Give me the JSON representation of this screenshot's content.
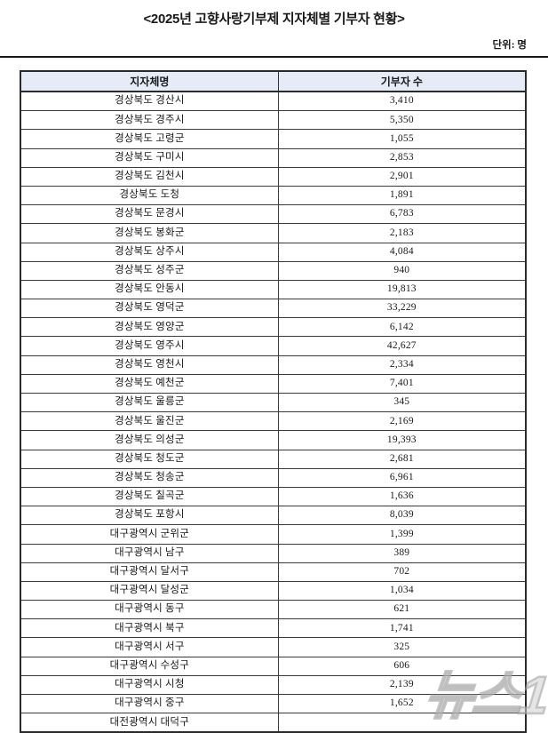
{
  "title": "<2025년 고향사랑기부제 지자체별 기부자 현황>",
  "unit_label": "단위: 명",
  "watermark": "뉴스1",
  "colors": {
    "header_bg": "#e6ebf8",
    "border": "#2a2a2a"
  },
  "table": {
    "columns": [
      "지자체명",
      "기부자 수"
    ],
    "rows": [
      {
        "name": "경상북도 경산시",
        "donors": "3,410"
      },
      {
        "name": "경상북도 경주시",
        "donors": "5,350"
      },
      {
        "name": "경상북도 고령군",
        "donors": "1,055"
      },
      {
        "name": "경상북도 구미시",
        "donors": "2,853"
      },
      {
        "name": "경상북도 김천시",
        "donors": "2,901"
      },
      {
        "name": "경상북도 도청",
        "donors": "1,891"
      },
      {
        "name": "경상북도 문경시",
        "donors": "6,783"
      },
      {
        "name": "경상북도 봉화군",
        "donors": "2,183"
      },
      {
        "name": "경상북도 상주시",
        "donors": "4,084"
      },
      {
        "name": "경상북도 성주군",
        "donors": "940"
      },
      {
        "name": "경상북도 안동시",
        "donors": "19,813"
      },
      {
        "name": "경상북도 영덕군",
        "donors": "33,229"
      },
      {
        "name": "경상북도 영양군",
        "donors": "6,142"
      },
      {
        "name": "경상북도 영주시",
        "donors": "42,627"
      },
      {
        "name": "경상북도 영천시",
        "donors": "2,334"
      },
      {
        "name": "경상북도 예천군",
        "donors": "7,401"
      },
      {
        "name": "경상북도 울릉군",
        "donors": "345"
      },
      {
        "name": "경상북도 울진군",
        "donors": "2,169"
      },
      {
        "name": "경상북도 의성군",
        "donors": "19,393"
      },
      {
        "name": "경상북도 청도군",
        "donors": "2,681"
      },
      {
        "name": "경상북도 청송군",
        "donors": "6,961"
      },
      {
        "name": "경상북도 칠곡군",
        "donors": "1,636"
      },
      {
        "name": "경상북도 포항시",
        "donors": "8,039"
      },
      {
        "name": "대구광역시 군위군",
        "donors": "1,399"
      },
      {
        "name": "대구광역시 남구",
        "donors": "389"
      },
      {
        "name": "대구광역시 달서구",
        "donors": "702"
      },
      {
        "name": "대구광역시 달성군",
        "donors": "1,034"
      },
      {
        "name": "대구광역시 동구",
        "donors": "621"
      },
      {
        "name": "대구광역시 북구",
        "donors": "1,741"
      },
      {
        "name": "대구광역시 서구",
        "donors": "325"
      },
      {
        "name": "대구광역시 수성구",
        "donors": "606"
      },
      {
        "name": "대구광역시 시청",
        "donors": "2,139"
      },
      {
        "name": "대구광역시 중구",
        "donors": "1,652"
      }
    ],
    "partial_row": {
      "name": "대전광역시 대덕구",
      "donors": ""
    }
  }
}
